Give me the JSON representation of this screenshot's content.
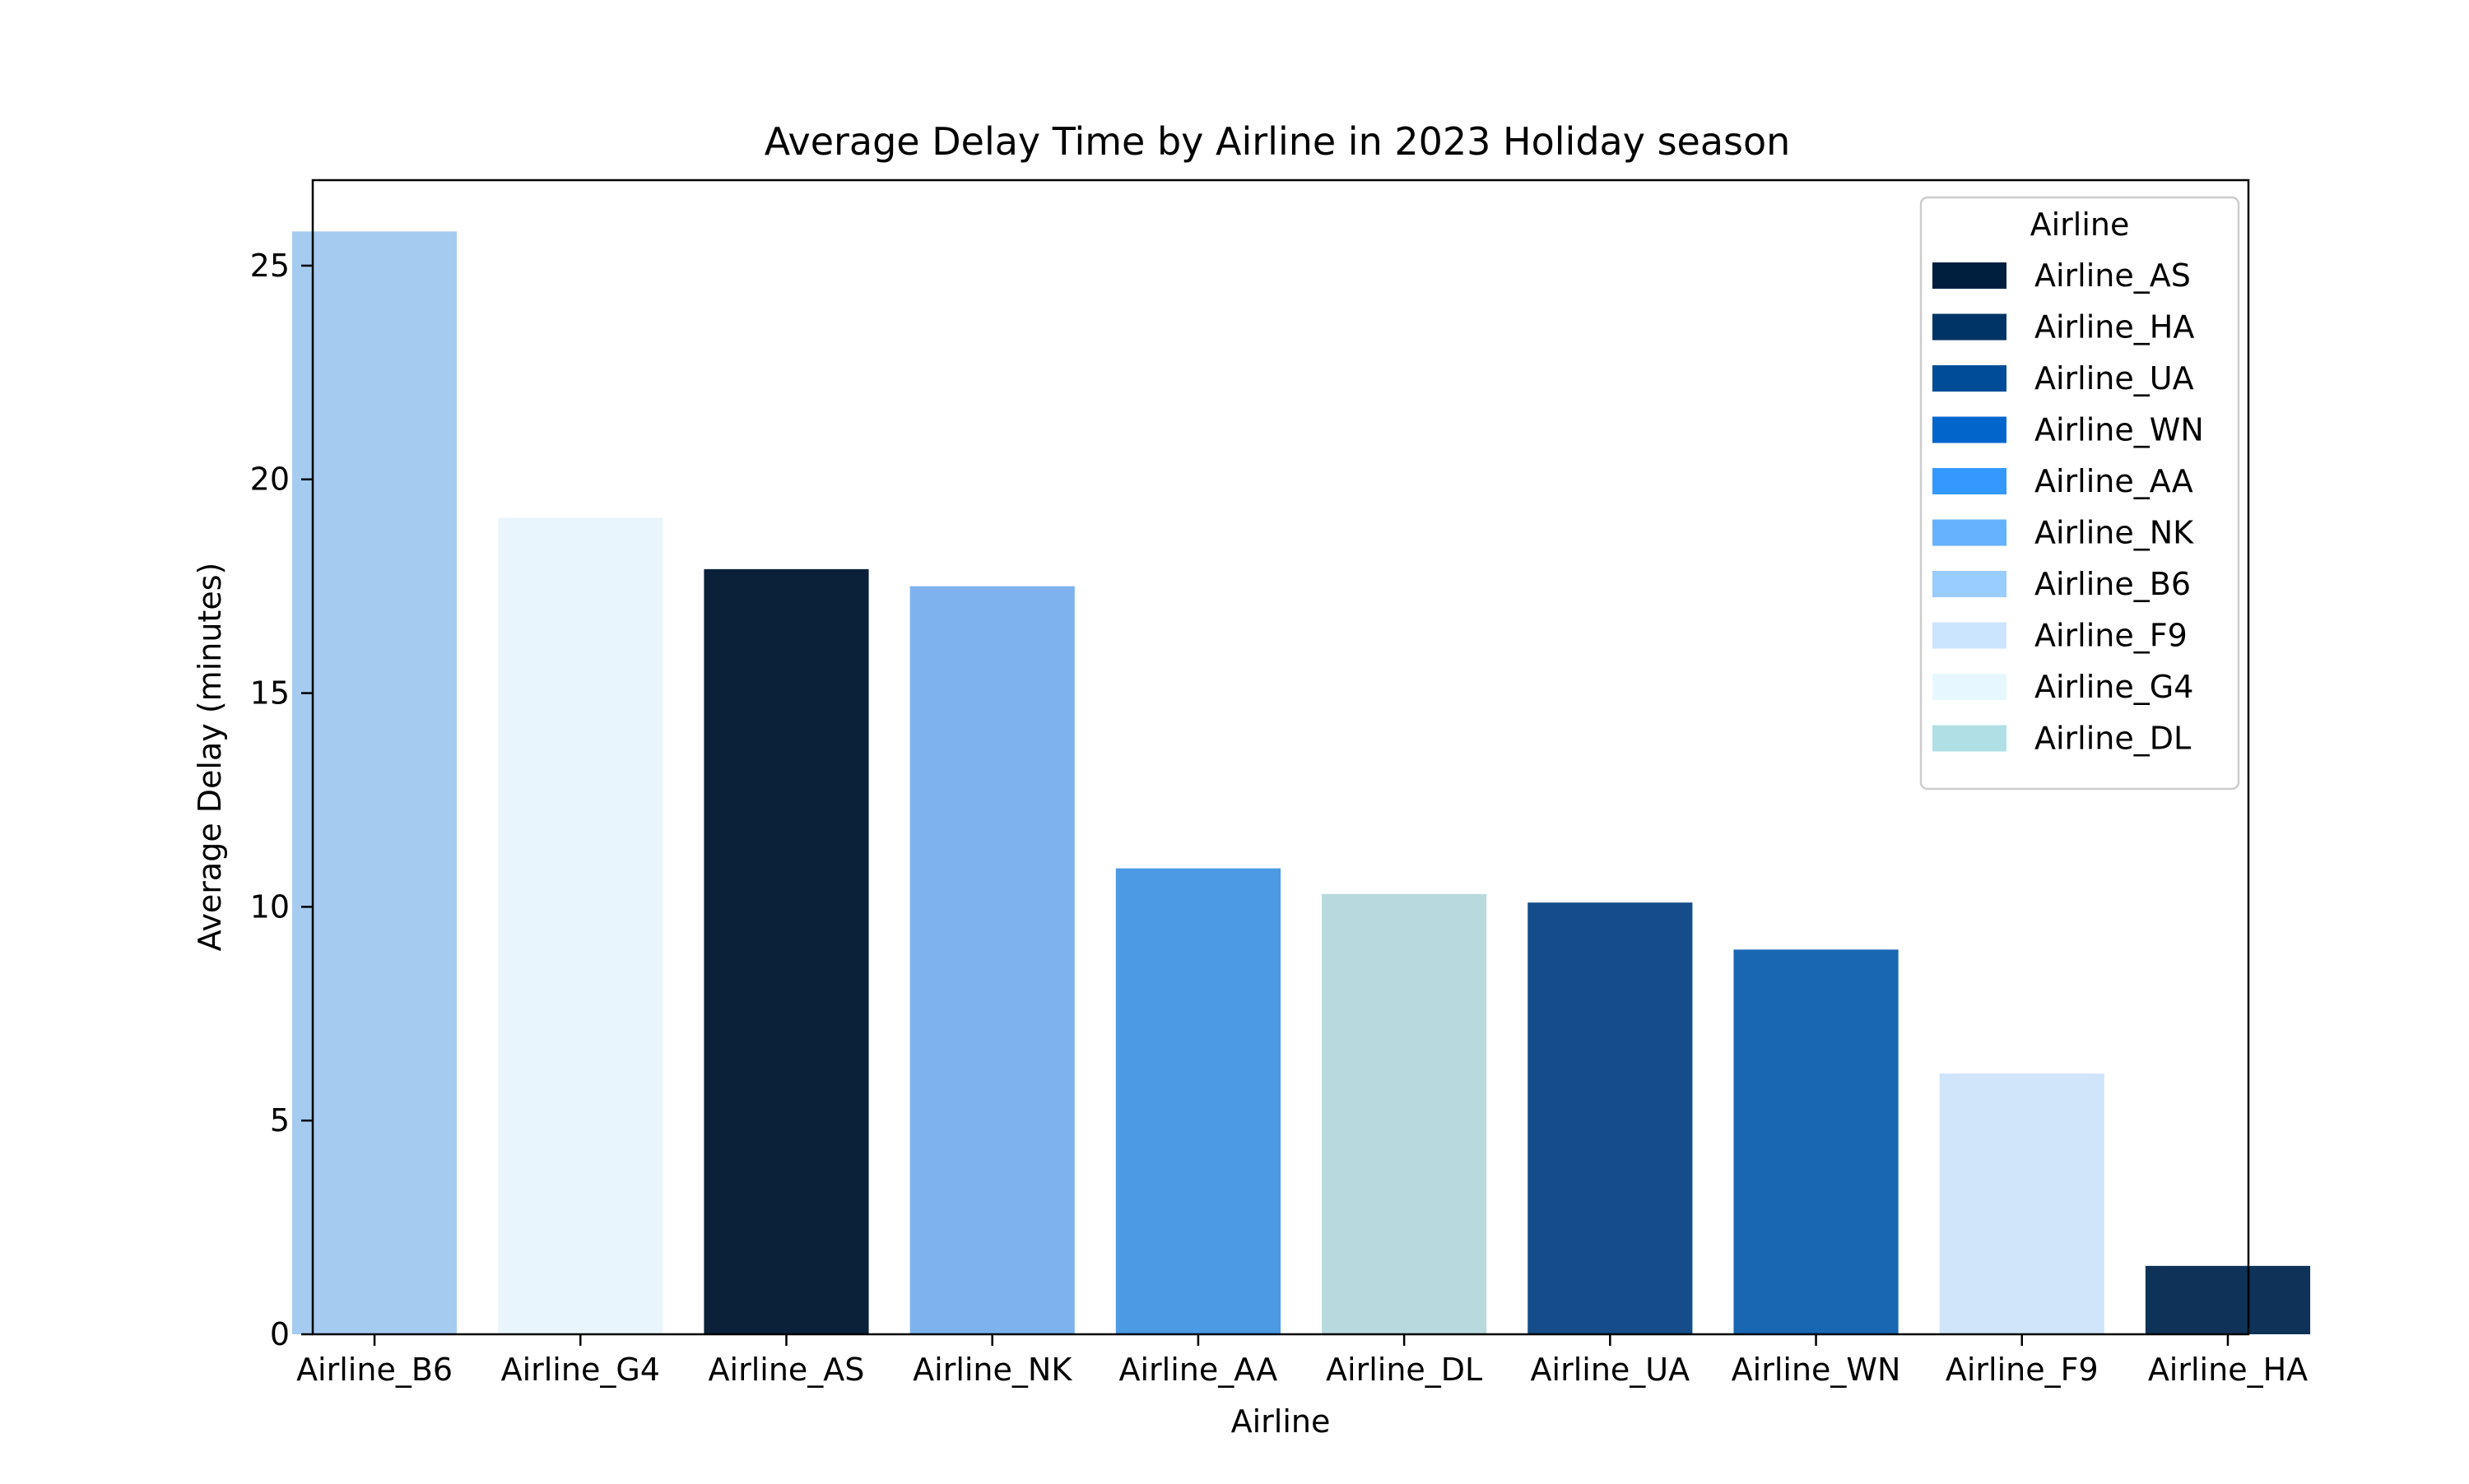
{
  "chart_data": {
    "type": "bar",
    "title": "Average Delay Time by Airline in 2023 Holiday season",
    "xlabel": "Airline",
    "ylabel": "Average Delay (minutes)",
    "ylim": [
      0,
      27
    ],
    "yticks": [
      0,
      5,
      10,
      15,
      20,
      25
    ],
    "grid": false,
    "categories": [
      "Airline_B6",
      "Airline_G4",
      "Airline_AS",
      "Airline_NK",
      "Airline_AA",
      "Airline_DL",
      "Airline_UA",
      "Airline_WN",
      "Airline_F9",
      "Airline_HA"
    ],
    "values": [
      25.8,
      19.1,
      17.9,
      17.5,
      10.9,
      10.3,
      10.1,
      9.0,
      6.1,
      1.6
    ],
    "bar_colors": [
      "#a6cbf1",
      "#e9f5fc",
      "#0b2139",
      "#7db2ee",
      "#4c99e4",
      "#b8dadf",
      "#144d89",
      "#1967b3",
      "#d0e4fa",
      "#0f3358"
    ],
    "legend": {
      "title": "Airline",
      "placement": "upper-right",
      "entries": [
        {
          "label": "Airline_AS",
          "color": "#001f3f"
        },
        {
          "label": "Airline_HA",
          "color": "#003366"
        },
        {
          "label": "Airline_UA",
          "color": "#004c99"
        },
        {
          "label": "Airline_WN",
          "color": "#0066cc"
        },
        {
          "label": "Airline_AA",
          "color": "#3399ff"
        },
        {
          "label": "Airline_NK",
          "color": "#66b2ff"
        },
        {
          "label": "Airline_B6",
          "color": "#99ccff"
        },
        {
          "label": "Airline_F9",
          "color": "#cce5ff"
        },
        {
          "label": "Airline_G4",
          "color": "#e6f7ff"
        },
        {
          "label": "Airline_DL",
          "color": "#b0e0e6"
        }
      ]
    }
  }
}
